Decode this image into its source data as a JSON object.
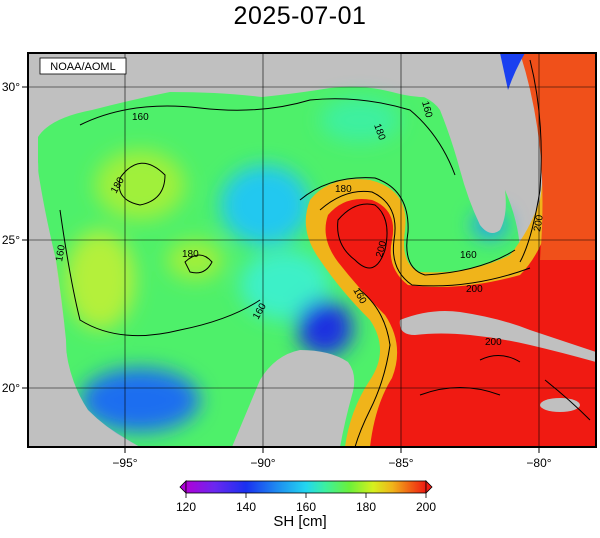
{
  "title": "2025-07-01",
  "credit": "NOAA/AOML",
  "map": {
    "lon_range": [
      -98.5,
      -78
    ],
    "lat_range": [
      18,
      31
    ],
    "lon_ticks": [
      {
        "value": -95,
        "label": "−95°"
      },
      {
        "value": -90,
        "label": "−90°"
      },
      {
        "value": -85,
        "label": "−85°"
      },
      {
        "value": -80,
        "label": "−80°"
      }
    ],
    "lat_ticks": [
      {
        "value": 30,
        "label": "30°"
      },
      {
        "value": 25,
        "label": "25°"
      },
      {
        "value": 20,
        "label": "20°"
      }
    ],
    "contour_labels": [
      "160",
      "160",
      "160",
      "160",
      "160",
      "180",
      "180",
      "180",
      "200",
      "200",
      "200",
      "160",
      "180",
      "200"
    ],
    "land_color": "#c0c0c0"
  },
  "colorbar": {
    "title": "SH [cm]",
    "ticks": [
      "120",
      "140",
      "160",
      "180",
      "200"
    ],
    "range": [
      120,
      200
    ],
    "colors": [
      "#b000d8",
      "#6a28f0",
      "#1a30f0",
      "#1e8cf0",
      "#22d6f0",
      "#3cf0a0",
      "#6af03a",
      "#d6f01e",
      "#f0b41a",
      "#f05a14",
      "#f01a12"
    ]
  }
}
